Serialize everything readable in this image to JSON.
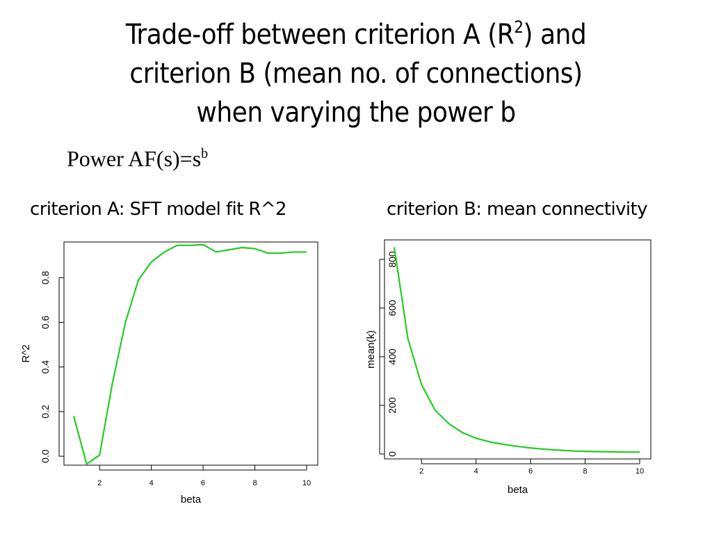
{
  "slide": {
    "title_line1_a": "Trade-off between criterion A (R",
    "title_line1_sup": "2",
    "title_line1_b": ") and",
    "title_line2": "criterion B (mean no. of connections)",
    "title_line3": "when varying the power b",
    "subtitle_main": "Power AF(s)=s",
    "subtitle_sup": "b"
  },
  "colors": {
    "line": "#22cc22",
    "frame": "#000000"
  },
  "chart_data": [
    {
      "type": "line",
      "caption": "criterion A: SFT model fit R^2",
      "xlabel": "beta",
      "ylabel": "R^2",
      "xlim": [
        1,
        10
      ],
      "ylim": [
        -0.04,
        0.96
      ],
      "xticks": [
        2,
        4,
        6,
        8,
        10
      ],
      "yticks": [
        0.0,
        0.2,
        0.4,
        0.6,
        0.8
      ],
      "ytick_labels": [
        "0.0",
        "0.2",
        "0.4",
        "0.6",
        "0.8"
      ],
      "x": [
        1,
        1.5,
        2,
        2.5,
        3,
        3.5,
        4,
        4.5,
        5,
        5.5,
        6,
        6.5,
        7,
        7.5,
        8,
        8.5,
        9,
        9.5,
        10
      ],
      "series": [
        {
          "values": [
            0.18,
            -0.035,
            0.005,
            0.33,
            0.6,
            0.79,
            0.87,
            0.915,
            0.945,
            0.945,
            0.948,
            0.915,
            0.925,
            0.935,
            0.93,
            0.91,
            0.91,
            0.915,
            0.915
          ]
        }
      ]
    },
    {
      "type": "line",
      "caption": "criterion B: mean connectivity",
      "xlabel": "beta",
      "ylabel": "mean(k)",
      "xlim": [
        1,
        10
      ],
      "ylim": [
        -20,
        880
      ],
      "xticks": [
        2,
        4,
        6,
        8,
        10
      ],
      "yticks": [
        0,
        200,
        400,
        600,
        800
      ],
      "ytick_labels": [
        "0",
        "200",
        "400",
        "600",
        "800"
      ],
      "x": [
        1,
        1.5,
        2,
        2.5,
        3,
        3.5,
        4,
        4.5,
        5,
        5.5,
        6,
        6.5,
        7,
        7.5,
        8,
        8.5,
        9,
        9.5,
        10
      ],
      "series": [
        {
          "values": [
            850,
            475,
            285,
            180,
            125,
            88,
            65,
            50,
            40,
            32,
            25,
            20,
            16,
            13,
            11,
            10,
            9,
            8,
            8
          ]
        }
      ]
    }
  ]
}
